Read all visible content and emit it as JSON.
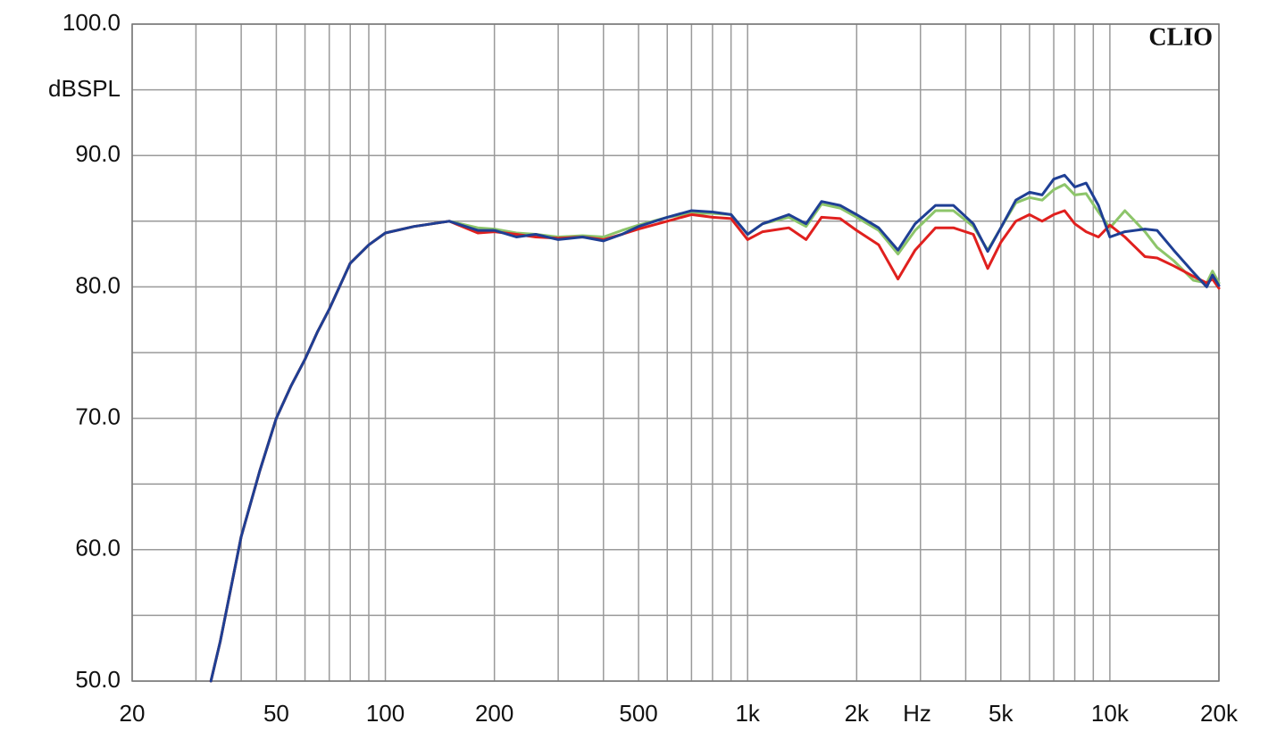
{
  "chart_data": {
    "type": "line",
    "y_label": "dBSPL",
    "x_label": "Hz",
    "watermark": "CLIO",
    "log_x": true,
    "grid": true,
    "xlim": [
      20,
      20000
    ],
    "ylim": [
      50,
      100
    ],
    "xticks": [
      20,
      50,
      100,
      200,
      500,
      {
        "value": 1000,
        "label": "1k"
      },
      {
        "value": 2000,
        "label": "2k"
      },
      {
        "value": 5000,
        "label": "5k"
      },
      {
        "value": 10000,
        "label": "10k"
      },
      {
        "value": 20000,
        "label": "20k"
      }
    ],
    "xminorticks": [
      30,
      40,
      60,
      70,
      80,
      90,
      300,
      400,
      600,
      700,
      800,
      900,
      3000,
      4000,
      6000,
      7000,
      8000,
      9000
    ],
    "yticks": [
      {
        "value": 50,
        "label": "50.0"
      },
      {
        "value": 60,
        "label": "60.0"
      },
      {
        "value": 70,
        "label": "70.0"
      },
      {
        "value": 80,
        "label": "80.0"
      },
      {
        "value": 90,
        "label": "90.0"
      },
      {
        "value": 100,
        "label": "100.0"
      }
    ],
    "yminorticks": [
      55,
      65,
      75,
      85,
      95
    ],
    "x": [
      33,
      35,
      40,
      45,
      50,
      55,
      60,
      65,
      70,
      80,
      90,
      100,
      120,
      150,
      180,
      200,
      230,
      260,
      300,
      350,
      400,
      450,
      500,
      600,
      700,
      800,
      900,
      1000,
      1100,
      1300,
      1450,
      1600,
      1800,
      2000,
      2300,
      2600,
      2900,
      3300,
      3700,
      4200,
      4600,
      5000,
      5500,
      6000,
      6500,
      7000,
      7500,
      8000,
      8600,
      9300,
      10000,
      11000,
      12500,
      13500,
      15000,
      17000,
      18500,
      19200,
      20000
    ],
    "series": [
      {
        "color": "#8dc56a",
        "values": [
          50,
          53,
          61,
          66,
          70,
          72.5,
          74.5,
          76.6,
          78.3,
          81.8,
          83.2,
          84.1,
          84.6,
          85,
          84.5,
          84.4,
          84.1,
          84,
          83.8,
          83.9,
          83.8,
          84.3,
          84.7,
          85.3,
          85.6,
          85.6,
          85.5,
          84,
          84.8,
          85.3,
          84.6,
          86.3,
          86,
          85.3,
          84.3,
          82.5,
          84.3,
          85.8,
          85.8,
          84.6,
          82.8,
          84.5,
          86.4,
          86.8,
          86.6,
          87.4,
          87.8,
          87,
          87.1,
          85.7,
          84.5,
          85.8,
          84.2,
          83,
          82,
          80.5,
          80.3,
          81.2,
          80.3
        ]
      },
      {
        "color": "#e0201e",
        "values": [
          50,
          53,
          61,
          66,
          70,
          72.5,
          74.5,
          76.6,
          78.3,
          81.8,
          83.2,
          84.1,
          84.6,
          85,
          84.1,
          84.2,
          84,
          83.8,
          83.7,
          83.8,
          83.6,
          84,
          84.4,
          85,
          85.5,
          85.3,
          85.2,
          83.6,
          84.2,
          84.5,
          83.6,
          85.3,
          85.2,
          84.3,
          83.2,
          80.6,
          82.8,
          84.5,
          84.5,
          84,
          81.4,
          83.4,
          85,
          85.5,
          85,
          85.5,
          85.8,
          84.8,
          84.2,
          83.8,
          84.7,
          83.8,
          82.3,
          82.2,
          81.6,
          80.8,
          80.3,
          80.6,
          79.9
        ]
      },
      {
        "color": "#1f3f94",
        "values": [
          50,
          53,
          61,
          66,
          70,
          72.5,
          74.5,
          76.6,
          78.3,
          81.8,
          83.2,
          84.1,
          84.6,
          85,
          84.3,
          84.3,
          83.8,
          84,
          83.6,
          83.8,
          83.5,
          84,
          84.6,
          85.3,
          85.8,
          85.7,
          85.5,
          84,
          84.8,
          85.5,
          84.8,
          86.5,
          86.2,
          85.5,
          84.5,
          82.8,
          84.8,
          86.2,
          86.2,
          84.8,
          82.7,
          84.5,
          86.6,
          87.2,
          87,
          88.2,
          88.5,
          87.6,
          87.9,
          86.2,
          83.8,
          84.2,
          84.4,
          84.3,
          82.8,
          81.1,
          80,
          80.9,
          80.1
        ]
      }
    ]
  }
}
